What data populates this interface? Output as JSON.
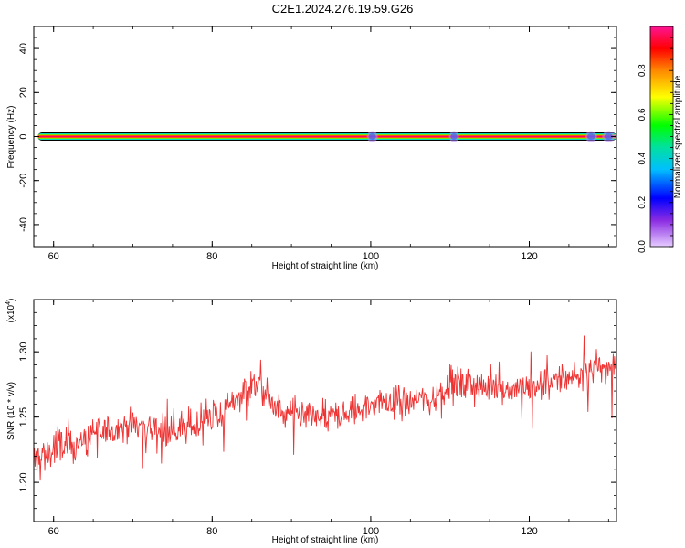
{
  "chart_data": [
    {
      "type": "heatmap",
      "title": "C2E1.2024.276.19.59.G26",
      "xlabel": "Height of straight line (km)",
      "ylabel": "Frequency (Hz)",
      "xlim": [
        57.5,
        131
      ],
      "ylim": [
        -50,
        50
      ],
      "xticks": [
        60,
        80,
        100,
        120
      ],
      "yticks": [
        -40,
        -20,
        0,
        20,
        40
      ],
      "band": {
        "frequency_hz": 0,
        "from_km": 58,
        "to_km": 131,
        "peak_amplitude": 0.95
      },
      "weak_patches": [
        {
          "x_km": 100.2,
          "amplitude": 0.2
        },
        {
          "x_km": 110.5,
          "amplitude": 0.15
        },
        {
          "x_km": 127.8,
          "amplitude": 0.25
        },
        {
          "x_km": 130.0,
          "amplitude": 0.3
        }
      ],
      "grid": false,
      "colorbar": {
        "label": "Normalized spectral amplitude",
        "range": [
          0,
          1
        ],
        "ticks": [
          "0.0",
          "0.2",
          "0.4",
          "0.6",
          "0.8"
        ],
        "colormap": "rainbow"
      }
    },
    {
      "type": "line",
      "xlabel": "Height of straight line (km)",
      "ylabel": "SNR (10 * v/v)",
      "yscale_label": "(x10",
      "yscale_exp": "4",
      "xlim": [
        57.5,
        131
      ],
      "ylim": [
        1.17,
        1.34
      ],
      "xticks": [
        60,
        80,
        100,
        120
      ],
      "yticks": [
        "1.20",
        "1.25",
        "1.30"
      ],
      "series": [
        {
          "color": "#ee3333",
          "x_start": 57.5,
          "x_end": 131,
          "trend": [
            [
              57.5,
              1.215
            ],
            [
              60,
              1.225
            ],
            [
              63,
              1.23
            ],
            [
              66,
              1.238
            ],
            [
              70,
              1.245
            ],
            [
              74,
              1.24
            ],
            [
              78,
              1.243
            ],
            [
              80,
              1.25
            ],
            [
              82,
              1.255
            ],
            [
              84,
              1.272
            ],
            [
              86,
              1.275
            ],
            [
              88,
              1.255
            ],
            [
              92,
              1.248
            ],
            [
              96,
              1.25
            ],
            [
              100,
              1.26
            ],
            [
              104,
              1.262
            ],
            [
              108,
              1.265
            ],
            [
              110,
              1.275
            ],
            [
              114,
              1.273
            ],
            [
              118,
              1.272
            ],
            [
              122,
              1.275
            ],
            [
              126,
              1.282
            ],
            [
              129,
              1.288
            ],
            [
              131,
              1.29
            ]
          ],
          "noise_amplitude": 0.014,
          "n_points": 900
        }
      ]
    }
  ]
}
